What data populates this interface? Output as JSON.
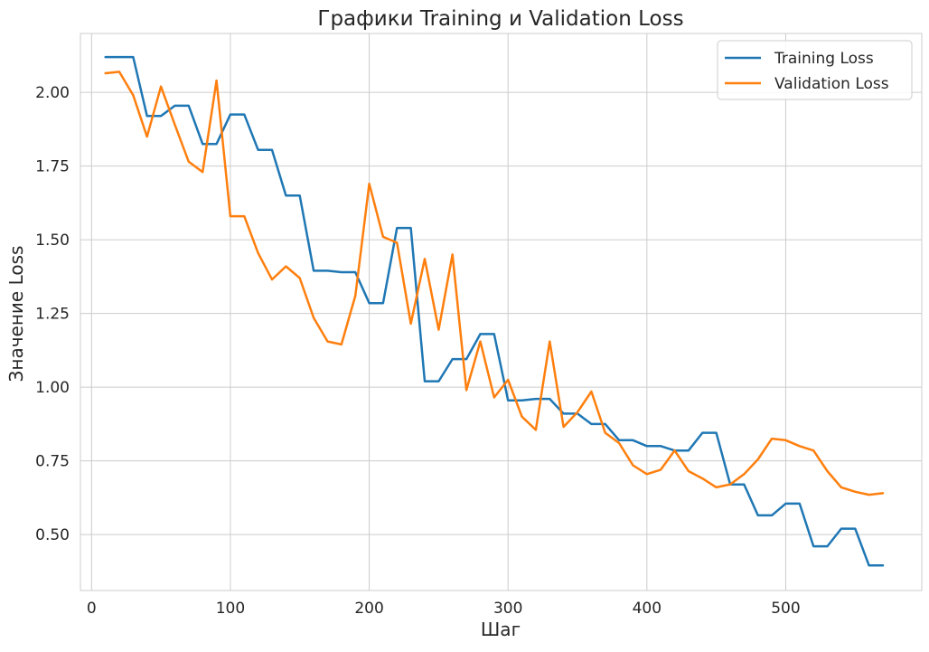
{
  "chart_data": {
    "type": "line",
    "title": "Графики Training и Validation Loss",
    "xlabel": "Шаг",
    "ylabel": "Значение Loss",
    "xlim": [
      -8,
      598
    ],
    "ylim": [
      0.31,
      2.2
    ],
    "xticks": [
      0,
      100,
      200,
      300,
      400,
      500
    ],
    "yticks": [
      0.5,
      0.75,
      1.0,
      1.25,
      1.5,
      1.75,
      2.0
    ],
    "ytick_labels": [
      "0.50",
      "0.75",
      "1.00",
      "1.25",
      "1.50",
      "1.75",
      "2.00"
    ],
    "grid": true,
    "legend_position": "top-right",
    "x": [
      10,
      20,
      30,
      40,
      50,
      60,
      70,
      80,
      90,
      100,
      110,
      120,
      130,
      140,
      150,
      160,
      170,
      180,
      190,
      200,
      210,
      220,
      230,
      240,
      250,
      260,
      270,
      280,
      290,
      300,
      310,
      320,
      330,
      340,
      350,
      360,
      370,
      380,
      390,
      400,
      410,
      420,
      430,
      440,
      450,
      460,
      470,
      480,
      490,
      500,
      510,
      520,
      530,
      540,
      550,
      560,
      570
    ],
    "series": [
      {
        "name": "Training Loss",
        "color": "#1f77b4",
        "values": [
          2.12,
          2.12,
          2.12,
          1.92,
          1.92,
          1.955,
          1.955,
          1.825,
          1.825,
          1.925,
          1.925,
          1.805,
          1.805,
          1.65,
          1.65,
          1.395,
          1.395,
          1.39,
          1.39,
          1.285,
          1.285,
          1.54,
          1.54,
          1.02,
          1.02,
          1.095,
          1.095,
          1.18,
          1.18,
          0.955,
          0.955,
          0.96,
          0.96,
          0.91,
          0.91,
          0.875,
          0.875,
          0.82,
          0.82,
          0.8,
          0.8,
          0.785,
          0.785,
          0.845,
          0.845,
          0.67,
          0.67,
          0.565,
          0.565,
          0.605,
          0.605,
          0.46,
          0.46,
          0.52,
          0.52,
          0.395,
          0.395
        ]
      },
      {
        "name": "Validation Loss",
        "color": "#ff7f0e",
        "values": [
          2.065,
          2.07,
          1.99,
          1.85,
          2.02,
          1.89,
          1.765,
          1.73,
          2.04,
          1.58,
          1.58,
          1.455,
          1.365,
          1.41,
          1.37,
          1.235,
          1.155,
          1.145,
          1.31,
          1.69,
          1.51,
          1.49,
          1.215,
          1.435,
          1.195,
          1.45,
          0.99,
          1.155,
          0.965,
          1.025,
          0.9,
          0.855,
          1.155,
          0.865,
          0.915,
          0.985,
          0.845,
          0.81,
          0.735,
          0.705,
          0.72,
          0.785,
          0.715,
          0.69,
          0.66,
          0.67,
          0.705,
          0.755,
          0.825,
          0.82,
          0.8,
          0.785,
          0.715,
          0.66,
          0.645,
          0.635,
          0.64
        ]
      }
    ]
  }
}
